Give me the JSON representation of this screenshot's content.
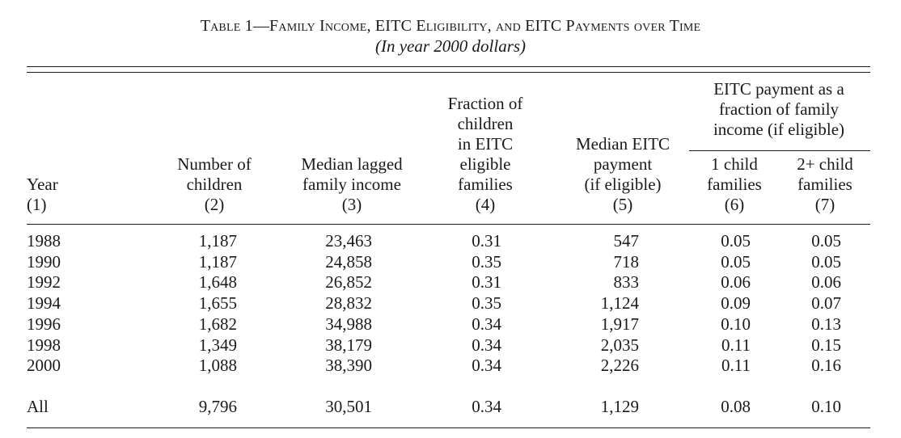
{
  "table": {
    "title": "Table 1—Family Income, EITC Eligibility, and EITC Payments over Time",
    "subtitle": "(In year 2000 dollars)",
    "spanner": [
      "EITC payment as a",
      "fraction of family",
      "income (if eligible)"
    ],
    "columns": [
      {
        "lines": [
          "Year"
        ],
        "num": "(1)"
      },
      {
        "lines": [
          "Number of",
          "children"
        ],
        "num": "(2)"
      },
      {
        "lines": [
          "Median lagged",
          "family income"
        ],
        "num": "(3)"
      },
      {
        "lines": [
          "Fraction of",
          "children",
          "in EITC",
          "eligible",
          "families"
        ],
        "num": "(4)"
      },
      {
        "lines": [
          "Median EITC",
          "payment",
          "(if eligible)"
        ],
        "num": "(5)"
      },
      {
        "lines": [
          "1 child",
          "families"
        ],
        "num": "(6)"
      },
      {
        "lines": [
          "2+ child",
          "families"
        ],
        "num": "(7)"
      }
    ],
    "rows": [
      [
        "1988",
        "1,187",
        "23,463",
        "0.31",
        "547",
        "0.05",
        "0.05"
      ],
      [
        "1990",
        "1,187",
        "24,858",
        "0.35",
        "718",
        "0.05",
        "0.05"
      ],
      [
        "1992",
        "1,648",
        "26,852",
        "0.31",
        "833",
        "0.06",
        "0.06"
      ],
      [
        "1994",
        "1,655",
        "28,832",
        "0.35",
        "1,124",
        "0.09",
        "0.07"
      ],
      [
        "1996",
        "1,682",
        "34,988",
        "0.34",
        "1,917",
        "0.10",
        "0.13"
      ],
      [
        "1998",
        "1,349",
        "38,179",
        "0.34",
        "2,035",
        "0.11",
        "0.15"
      ],
      [
        "2000",
        "1,088",
        "38,390",
        "0.34",
        "2,226",
        "0.11",
        "0.16"
      ]
    ],
    "total_row": [
      "All",
      "9,796",
      "30,501",
      "0.34",
      "1,129",
      "0.08",
      "0.10"
    ]
  }
}
